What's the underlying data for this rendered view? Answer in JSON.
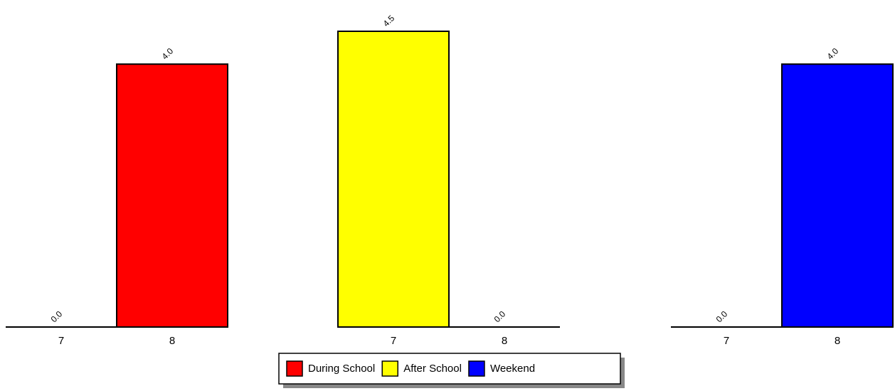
{
  "chart_data": {
    "type": "bar",
    "categories": [
      "7",
      "8"
    ],
    "ylim": [
      0,
      4.5
    ],
    "series": [
      {
        "name": "During School",
        "color": "#ff0000",
        "values": [
          0,
          4.0
        ],
        "value_labels": [
          "0.0",
          "4.0"
        ]
      },
      {
        "name": "After School",
        "color": "#ffff00",
        "values": [
          4.5,
          0
        ],
        "value_labels": [
          "4.5",
          "0.0"
        ]
      },
      {
        "name": "Weekend",
        "color": "#0000ff",
        "values": [
          0,
          4.0
        ],
        "value_labels": [
          "0.0",
          "4.0"
        ]
      }
    ]
  }
}
